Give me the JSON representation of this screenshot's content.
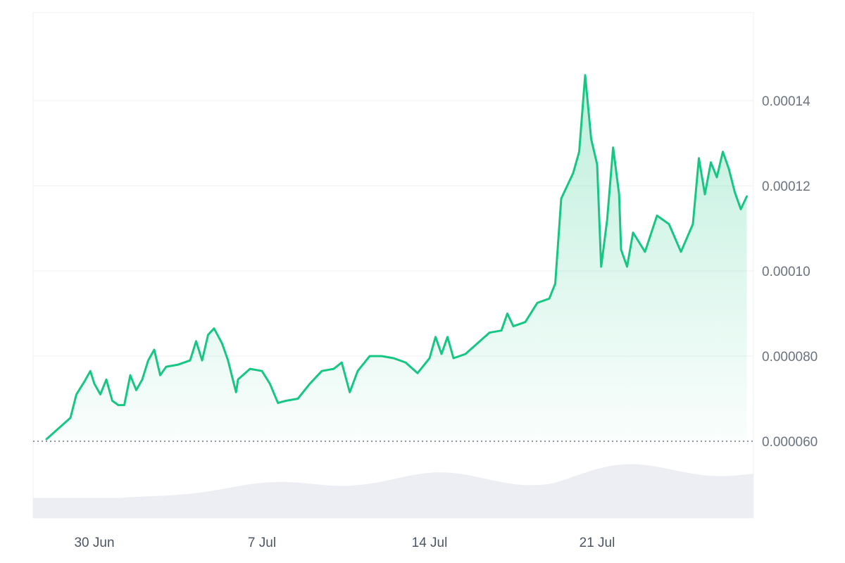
{
  "chart_data": {
    "type": "area",
    "title": "",
    "xlabel": "",
    "ylabel": "",
    "ylim": [
      4e-05,
      0.00016
    ],
    "y_ticks": [
      {
        "value": 6e-05,
        "label": "0.000060"
      },
      {
        "value": 8e-05,
        "label": "0.000080"
      },
      {
        "value": 0.0001,
        "label": "0.00010"
      },
      {
        "value": 0.00012,
        "label": "0.00012"
      },
      {
        "value": 0.00014,
        "label": "0.00014"
      }
    ],
    "x_range": [
      "2025-06-28",
      "2025-07-26"
    ],
    "x_ticks": [
      {
        "date": "2025-06-30",
        "label": "30 Jun"
      },
      {
        "date": "2025-07-07",
        "label": "7 Jul"
      },
      {
        "date": "2025-07-14",
        "label": "14 Jul"
      },
      {
        "date": "2025-07-21",
        "label": "21 Jul"
      }
    ],
    "baseline": 6e-05,
    "grid": true,
    "legend": "none",
    "series": [
      {
        "color": "#16c784",
        "points": [
          [
            "2025-06-28",
            6.05e-05
          ],
          [
            "2025-06-28T12:00",
            6.3e-05
          ],
          [
            "2025-06-29",
            6.55e-05
          ],
          [
            "2025-06-29T06:00",
            7.1e-05
          ],
          [
            "2025-06-29T14:00",
            7.4e-05
          ],
          [
            "2025-06-29T20:00",
            7.65e-05
          ],
          [
            "2025-06-30",
            7.35e-05
          ],
          [
            "2025-06-30T06:00",
            7.1e-05
          ],
          [
            "2025-06-30T12:00",
            7.45e-05
          ],
          [
            "2025-06-30T18:00",
            6.95e-05
          ],
          [
            "2025-07-01",
            6.85e-05
          ],
          [
            "2025-07-01T06:00",
            6.85e-05
          ],
          [
            "2025-07-01T12:00",
            7.55e-05
          ],
          [
            "2025-07-01T18:00",
            7.2e-05
          ],
          [
            "2025-07-02",
            7.45e-05
          ],
          [
            "2025-07-02T06:00",
            7.9e-05
          ],
          [
            "2025-07-02T12:00",
            8.15e-05
          ],
          [
            "2025-07-02T18:00",
            7.55e-05
          ],
          [
            "2025-07-03",
            7.75e-05
          ],
          [
            "2025-07-03T12:00",
            7.8e-05
          ],
          [
            "2025-07-04",
            7.9e-05
          ],
          [
            "2025-07-04T06:00",
            8.35e-05
          ],
          [
            "2025-07-04T12:00",
            7.9e-05
          ],
          [
            "2025-07-04T18:00",
            8.5e-05
          ],
          [
            "2025-07-05",
            8.65e-05
          ],
          [
            "2025-07-05T08:00",
            8.3e-05
          ],
          [
            "2025-07-05T14:00",
            7.9e-05
          ],
          [
            "2025-07-05T22:00",
            7.15e-05
          ],
          [
            "2025-07-06",
            7.45e-05
          ],
          [
            "2025-07-06T12:00",
            7.7e-05
          ],
          [
            "2025-07-07",
            7.65e-05
          ],
          [
            "2025-07-07T08:00",
            7.35e-05
          ],
          [
            "2025-07-07T16:00",
            6.9e-05
          ],
          [
            "2025-07-08",
            6.95e-05
          ],
          [
            "2025-07-08T12:00",
            7e-05
          ],
          [
            "2025-07-09",
            7.35e-05
          ],
          [
            "2025-07-09T12:00",
            7.65e-05
          ],
          [
            "2025-07-10",
            7.7e-05
          ],
          [
            "2025-07-10T08:00",
            7.85e-05
          ],
          [
            "2025-07-10T16:00",
            7.15e-05
          ],
          [
            "2025-07-11",
            7.65e-05
          ],
          [
            "2025-07-11T12:00",
            8e-05
          ],
          [
            "2025-07-12",
            8e-05
          ],
          [
            "2025-07-12T12:00",
            7.95e-05
          ],
          [
            "2025-07-13",
            7.85e-05
          ],
          [
            "2025-07-13T12:00",
            7.6e-05
          ],
          [
            "2025-07-14",
            7.95e-05
          ],
          [
            "2025-07-14T06:00",
            8.45e-05
          ],
          [
            "2025-07-14T12:00",
            8.05e-05
          ],
          [
            "2025-07-14T18:00",
            8.45e-05
          ],
          [
            "2025-07-15",
            7.95e-05
          ],
          [
            "2025-07-15T12:00",
            8.05e-05
          ],
          [
            "2025-07-16",
            8.3e-05
          ],
          [
            "2025-07-16T12:00",
            8.55e-05
          ],
          [
            "2025-07-17",
            8.6e-05
          ],
          [
            "2025-07-17T06:00",
            9e-05
          ],
          [
            "2025-07-17T12:00",
            8.7e-05
          ],
          [
            "2025-07-18",
            8.8e-05
          ],
          [
            "2025-07-18T12:00",
            9.25e-05
          ],
          [
            "2025-07-19",
            9.35e-05
          ],
          [
            "2025-07-19T06:00",
            9.7e-05
          ],
          [
            "2025-07-19T12:00",
            0.000117
          ],
          [
            "2025-07-19T18:00",
            0.00012
          ],
          [
            "2025-07-20",
            0.000123
          ],
          [
            "2025-07-20T06:00",
            0.000128
          ],
          [
            "2025-07-20T12:00",
            0.000146
          ],
          [
            "2025-07-20T18:00",
            0.000131
          ],
          [
            "2025-07-21",
            0.000125
          ],
          [
            "2025-07-21T04:00",
            0.000101
          ],
          [
            "2025-07-21T10:00",
            0.000112
          ],
          [
            "2025-07-21T16:00",
            0.000129
          ],
          [
            "2025-07-21T22:00",
            0.000118
          ],
          [
            "2025-07-22",
            0.000105
          ],
          [
            "2025-07-22T06:00",
            0.000101
          ],
          [
            "2025-07-22T12:00",
            0.000109
          ],
          [
            "2025-07-23",
            0.0001045
          ],
          [
            "2025-07-23T12:00",
            0.000113
          ],
          [
            "2025-07-24",
            0.000111
          ],
          [
            "2025-07-24T12:00",
            0.0001045
          ],
          [
            "2025-07-25",
            0.000111
          ],
          [
            "2025-07-25T06:00",
            0.0001265
          ],
          [
            "2025-07-25T12:00",
            0.000118
          ],
          [
            "2025-07-25T18:00",
            0.0001255
          ],
          [
            "2025-07-26",
            0.000122
          ],
          [
            "2025-07-26T06:00",
            0.000128
          ],
          [
            "2025-07-26T12:00",
            0.000124
          ],
          [
            "2025-07-26T18:00",
            0.0001185
          ],
          [
            "2025-07-27",
            0.0001145
          ],
          [
            "2025-07-27T06:00",
            0.0001175
          ]
        ]
      }
    ]
  }
}
